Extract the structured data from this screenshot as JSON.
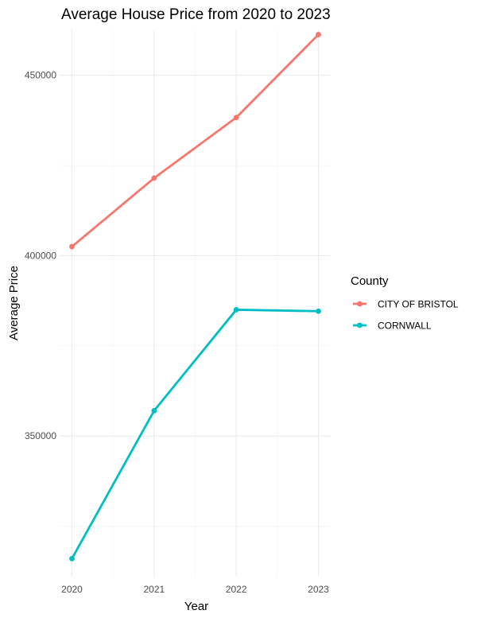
{
  "chart_data": {
    "type": "line",
    "title": "Average House Price from 2020 to 2023",
    "xlabel": "Year",
    "ylabel": "Average Price",
    "x": [
      2020,
      2021,
      2022,
      2023
    ],
    "x_tick_labels": [
      "2020",
      "2021",
      "2022",
      "2023"
    ],
    "y_ticks": [
      350000,
      400000,
      450000
    ],
    "y_tick_labels": [
      "350000",
      "400000",
      "450000"
    ],
    "xlim": [
      2019.85,
      2023.15
    ],
    "ylim": [
      311000,
      462500
    ],
    "grid": true,
    "legend": {
      "title": "County",
      "placement": "right"
    },
    "series": [
      {
        "name": "CITY OF BRISTOL",
        "color": "#F8766D",
        "values": [
          402500,
          421500,
          438300,
          461300
        ]
      },
      {
        "name": "CORNWALL",
        "color": "#00BFC4",
        "values": [
          316000,
          357000,
          385000,
          384600
        ]
      }
    ]
  }
}
